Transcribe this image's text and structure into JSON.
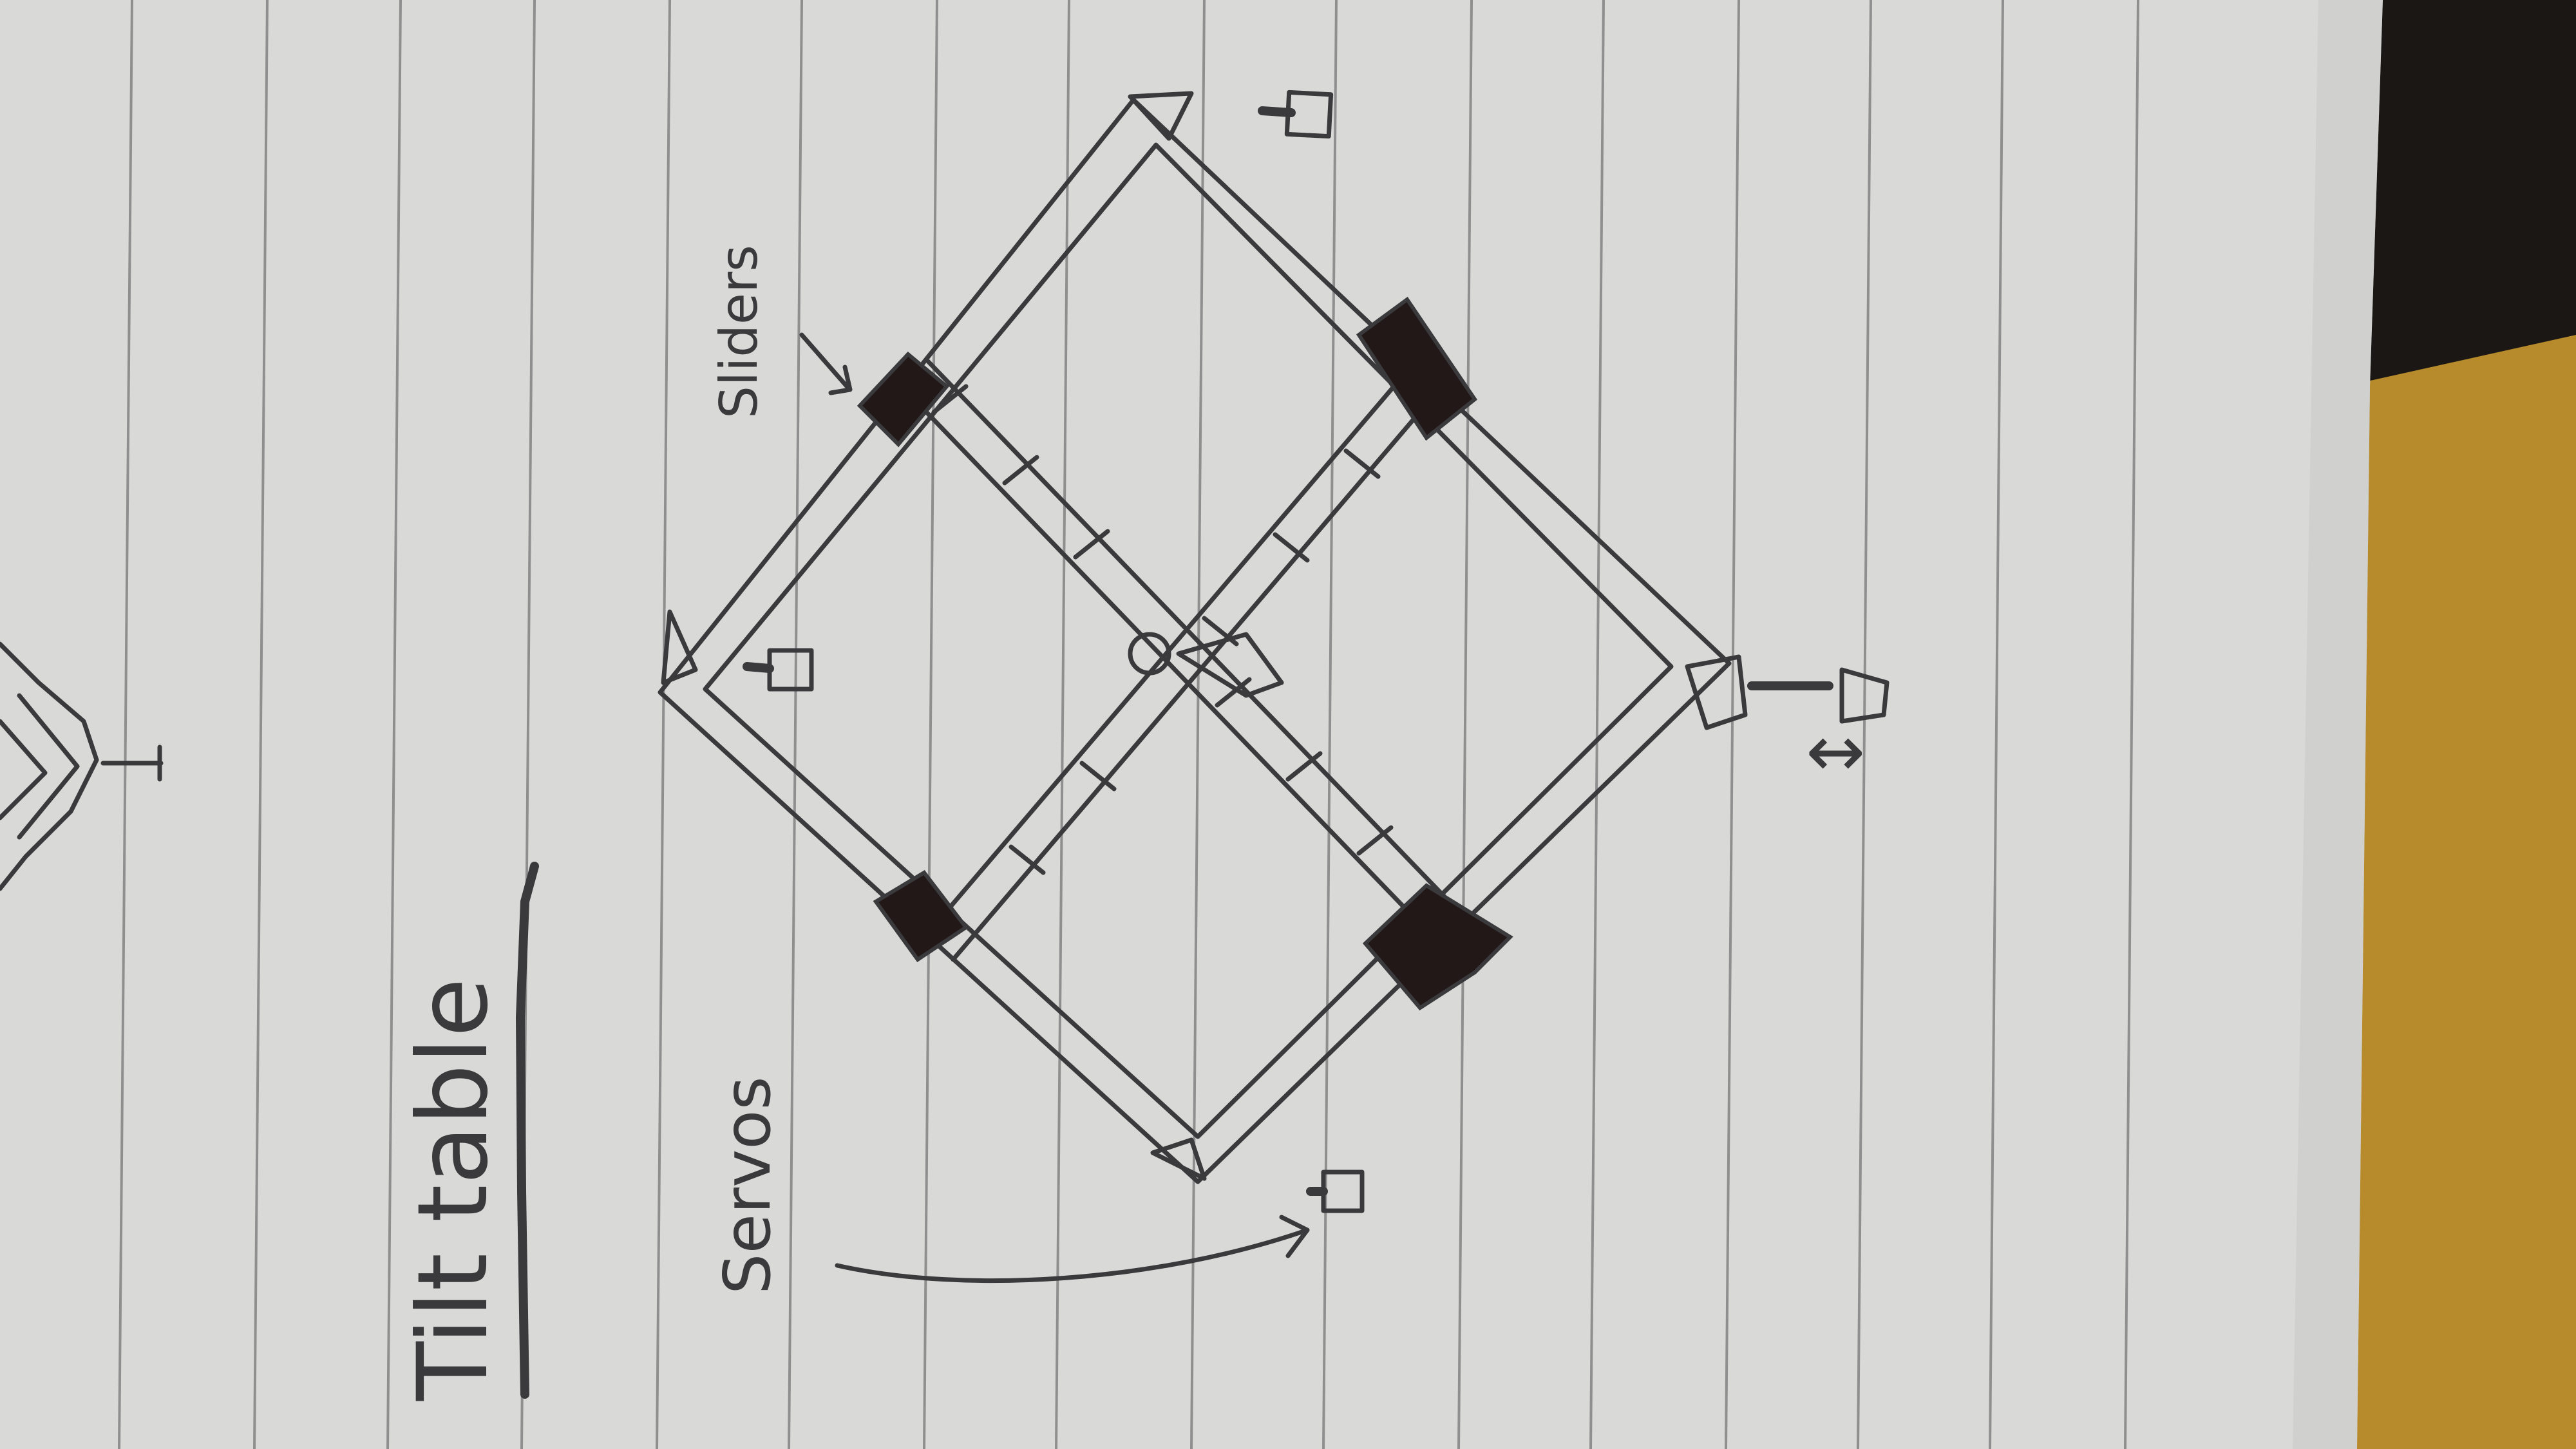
{
  "photo": {
    "subject": "notebook-sketch",
    "colors": {
      "paper": "#d9d9d7",
      "paper_shadow": "#c9c9c6",
      "rule_line": "#8f8f8f",
      "ink": "#3a3a3c",
      "ink_fill": "#231818",
      "desk": "#b78a2c",
      "background": "#1a1714"
    }
  },
  "sketch": {
    "title": "Tilt table",
    "labels": {
      "sliders": "Sliders",
      "servos": "Servos"
    },
    "annotations": {
      "motion_arrow": "↕"
    }
  }
}
